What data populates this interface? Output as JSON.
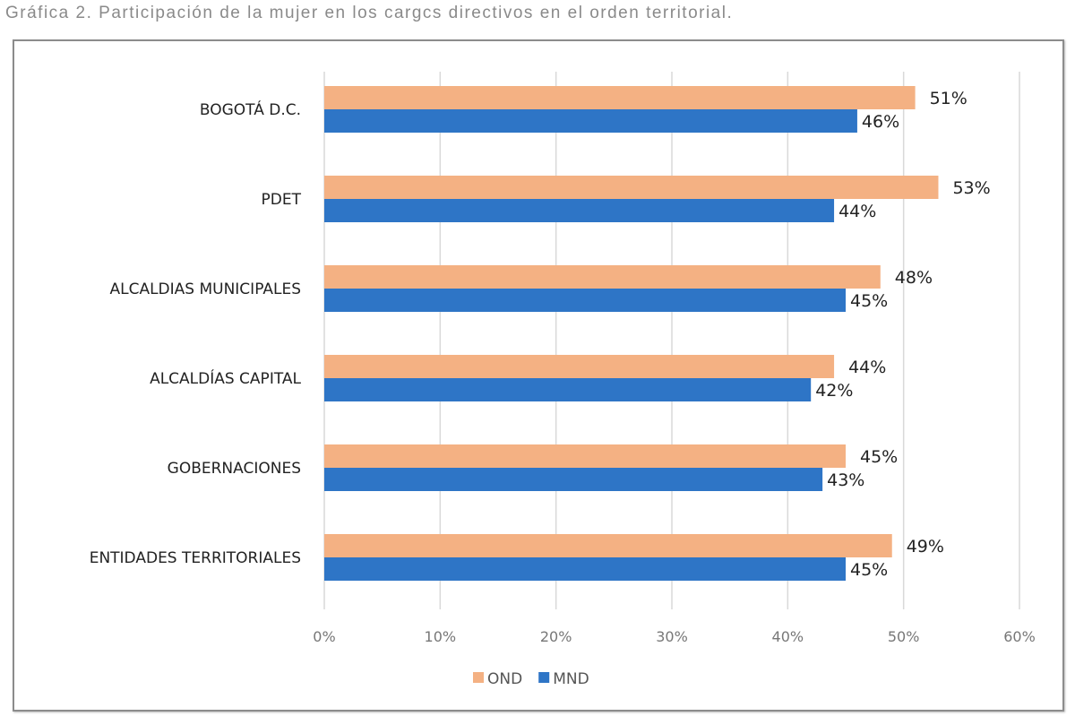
{
  "title": "Gráfica 2. Participación de la mujer en los cargcs directivos en el orden territorial.",
  "chart_data": {
    "type": "bar",
    "orientation": "horizontal",
    "title": "",
    "xlabel": "",
    "ylabel": "",
    "categories": [
      "BOGOTÁ D.C.",
      "PDET",
      "ALCALDIAS MUNICIPALES",
      "ALCALDÍAS CAPITAL",
      "GOBERNACIONES",
      "ENTIDADES TERRITORIALES"
    ],
    "series": [
      {
        "name": "OND",
        "color": "#F4B183",
        "values": [
          51,
          53,
          48,
          44,
          45,
          49
        ],
        "labels": [
          "51%",
          "53%",
          "48%",
          "44%",
          "45%",
          "49%"
        ]
      },
      {
        "name": "MND",
        "color": "#2E75C6",
        "values": [
          46,
          44,
          45,
          42,
          43,
          45
        ],
        "labels": [
          "46%",
          "44%",
          "45%",
          "42%",
          "43%",
          "45%"
        ]
      }
    ],
    "xlim": [
      0,
      60
    ],
    "xticks": [
      "0%",
      "10%",
      "20%",
      "30%",
      "40%",
      "50%",
      "60%"
    ],
    "grid": true,
    "legend": "bottom"
  }
}
